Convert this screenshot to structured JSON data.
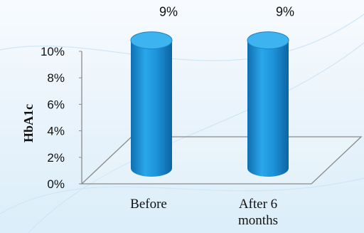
{
  "chart_data": {
    "type": "bar",
    "style": "3d-cylinder",
    "categories": [
      "Before",
      "After 6 months"
    ],
    "category_lines": [
      [
        "Before"
      ],
      [
        "After 6",
        "months"
      ]
    ],
    "series": [
      {
        "values": [
          9,
          9
        ],
        "data_labels": [
          "9%",
          "9%"
        ],
        "color": "#1e95dd"
      }
    ],
    "ylabel": "HbA1c",
    "yticks": [
      0,
      2,
      4,
      6,
      8,
      10
    ],
    "ytick_labels": [
      "0%",
      "2%",
      "4%",
      "6%",
      "8%",
      "10%"
    ],
    "ylim": [
      0,
      10
    ],
    "grid": false,
    "legend": "none"
  },
  "colors": {
    "bar": "#1e95dd",
    "bar_dark": "#0e74b8",
    "bar_top": "#3db3f0",
    "floor": "#8a8a8a"
  }
}
